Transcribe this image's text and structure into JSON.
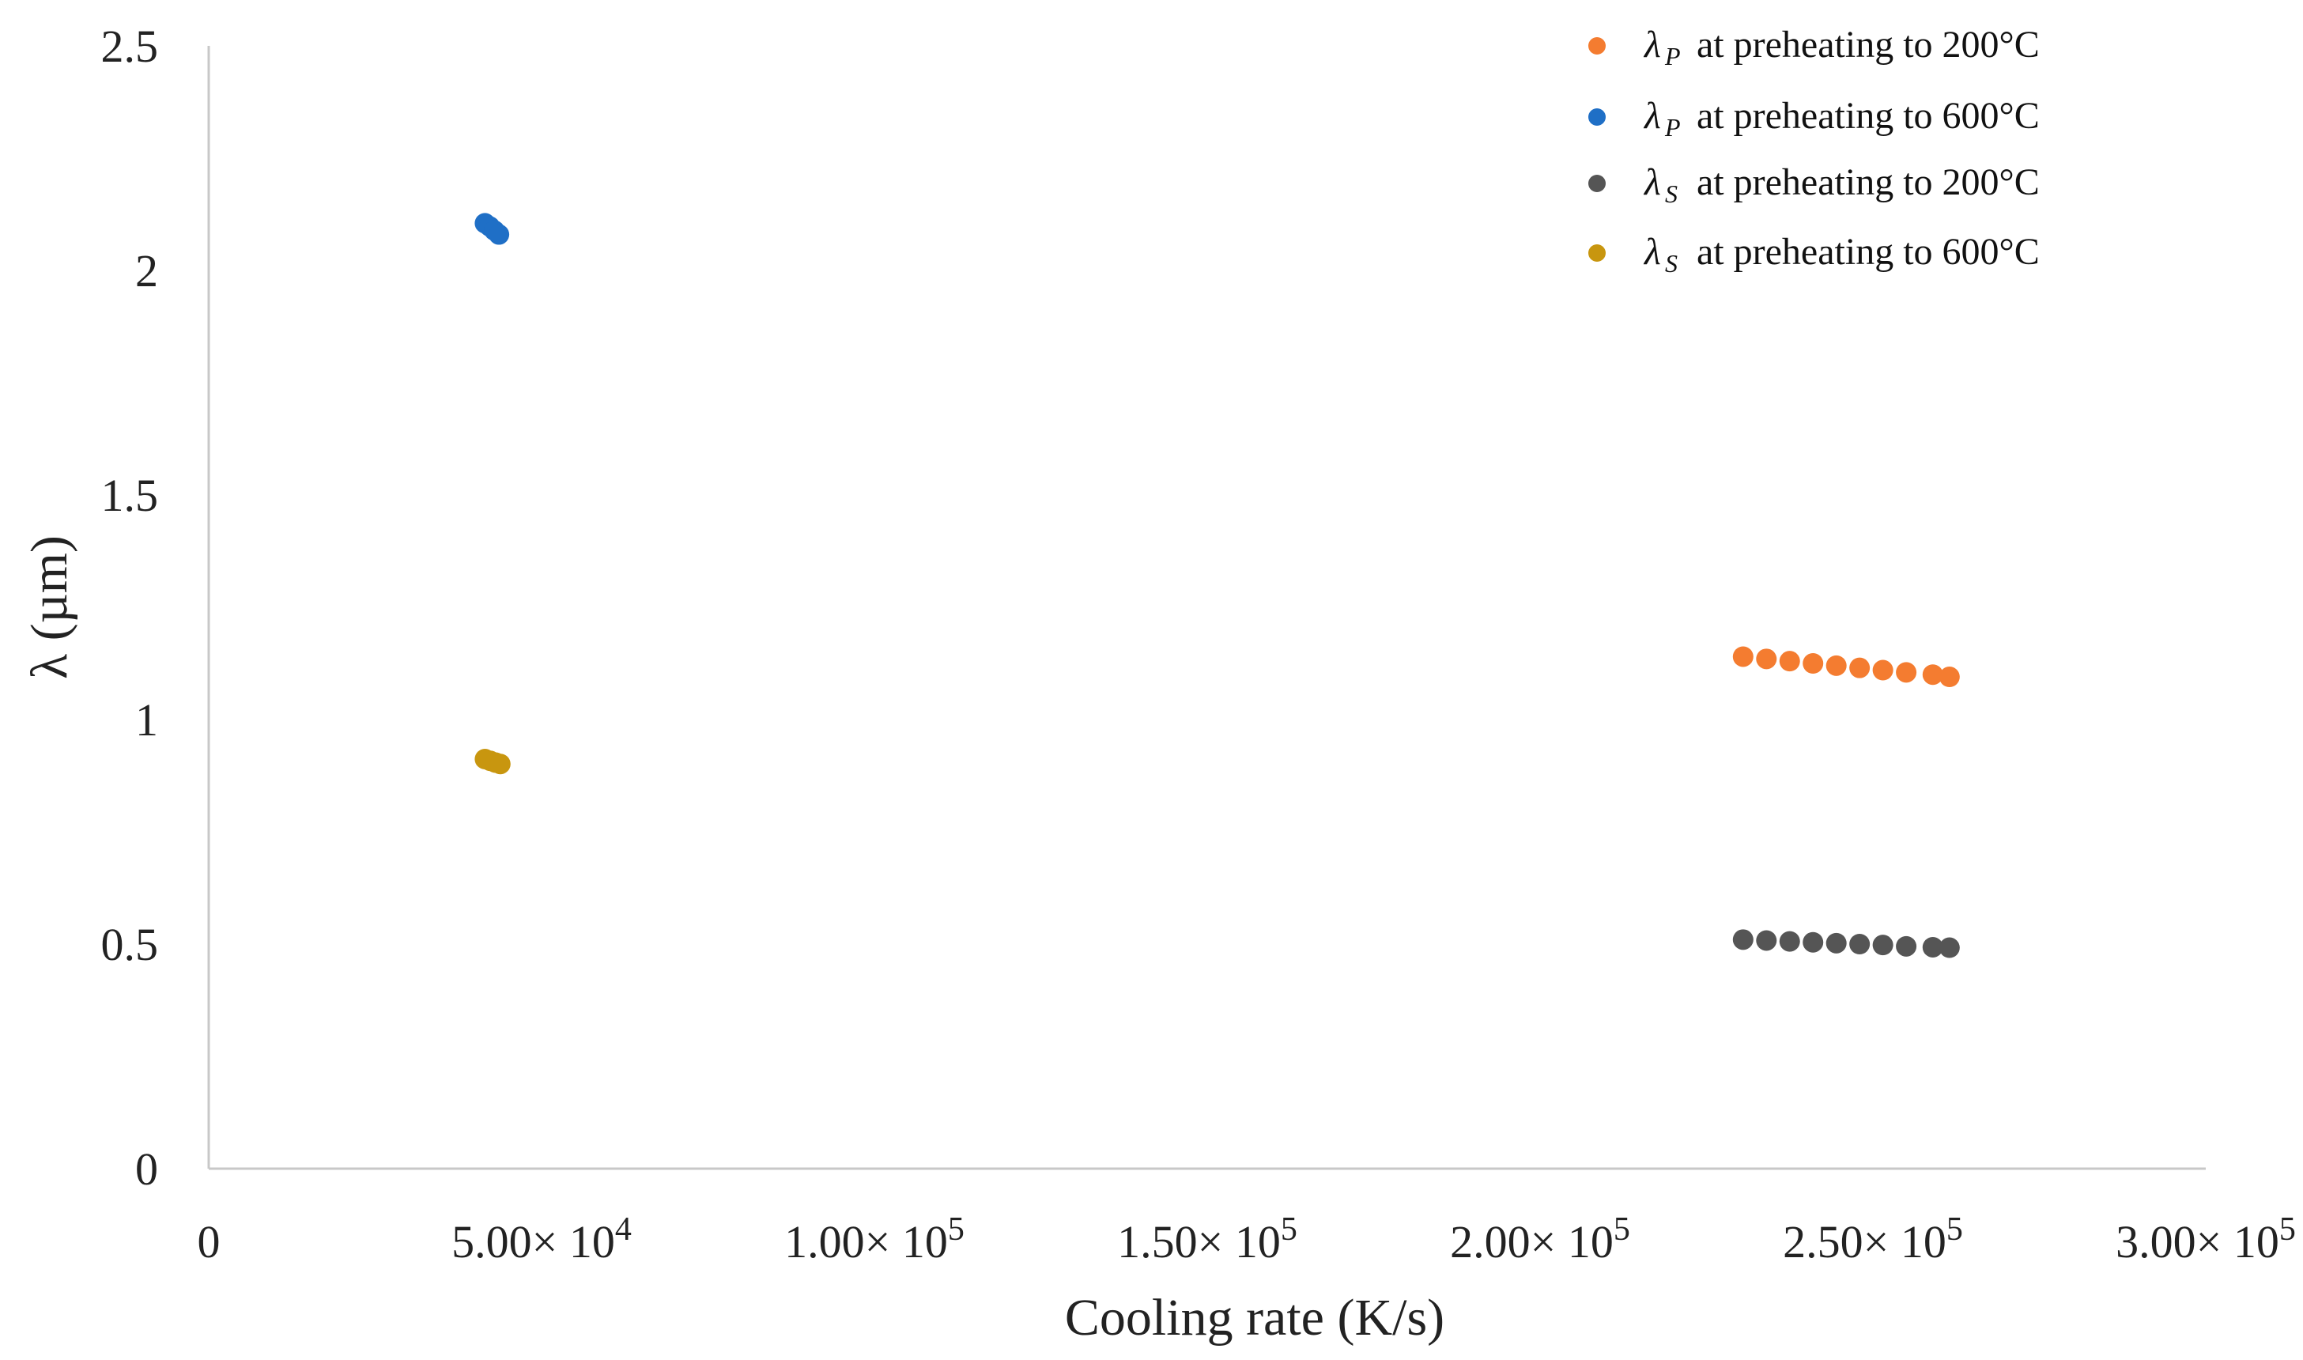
{
  "chart_data": {
    "type": "scatter",
    "title": "",
    "xlabel": "Cooling rate (K/s)",
    "ylabel": "λ (µm)",
    "xlim": [
      0,
      300000
    ],
    "ylim": [
      0,
      2.5
    ],
    "grid": false,
    "legend_position": "top-right",
    "x_ticks": [
      {
        "value": 0,
        "label": "0",
        "mantissa": "",
        "exp": ""
      },
      {
        "value": 50000,
        "label": "5.00× 10^4",
        "mantissa": "5.00× 10",
        "exp": "4"
      },
      {
        "value": 100000,
        "label": "1.00× 10^5",
        "mantissa": "1.00× 10",
        "exp": "5"
      },
      {
        "value": 150000,
        "label": "1.50× 10^5",
        "mantissa": "1.50× 10",
        "exp": "5"
      },
      {
        "value": 200000,
        "label": "2.00× 10^5",
        "mantissa": "2.00× 10",
        "exp": "5"
      },
      {
        "value": 250000,
        "label": "2.50× 10^5",
        "mantissa": "2.50× 10",
        "exp": "5"
      },
      {
        "value": 300000,
        "label": "3.00× 10^5",
        "mantissa": "3.00× 10",
        "exp": "5"
      }
    ],
    "y_ticks": [
      {
        "value": 0,
        "label": "0"
      },
      {
        "value": 0.5,
        "label": "0.5"
      },
      {
        "value": 1,
        "label": "1"
      },
      {
        "value": 1.5,
        "label": "1.5"
      },
      {
        "value": 2,
        "label": "2"
      },
      {
        "value": 2.5,
        "label": "2.5"
      }
    ],
    "series": [
      {
        "name": "λP at preheating to 200°C",
        "symbol": "λ",
        "sub": "P",
        "rest": "at preheating to 200°C",
        "color": "#F47C30",
        "x": [
          230500,
          234000,
          237500,
          241000,
          244500,
          248000,
          251500,
          255000,
          259000,
          261500
        ],
        "y": [
          1.14,
          1.135,
          1.13,
          1.125,
          1.12,
          1.115,
          1.11,
          1.105,
          1.1,
          1.095
        ]
      },
      {
        "name": "λP at preheating to 600°C",
        "symbol": "λ",
        "sub": "P",
        "rest": "at preheating to 600°C",
        "color": "#1F6FC6",
        "x": [
          41500,
          42200,
          42900,
          43600
        ],
        "y": [
          2.105,
          2.098,
          2.089,
          2.08
        ]
      },
      {
        "name": "λS at preheating to 200°C",
        "symbol": "λ",
        "sub": "S",
        "rest": "at preheating to 200°C",
        "color": "#555555",
        "x": [
          230500,
          234000,
          237500,
          241000,
          244500,
          248000,
          251500,
          255000,
          259000,
          261500
        ],
        "y": [
          0.51,
          0.508,
          0.506,
          0.504,
          0.502,
          0.5,
          0.498,
          0.495,
          0.493,
          0.492
        ]
      },
      {
        "name": "λS at preheating to 600°C",
        "symbol": "λ",
        "sub": "S",
        "rest": "at preheating to 600°C",
        "color": "#C8960F",
        "x": [
          41500,
          42300,
          43100,
          43800
        ],
        "y": [
          0.912,
          0.908,
          0.904,
          0.901
        ]
      }
    ]
  }
}
